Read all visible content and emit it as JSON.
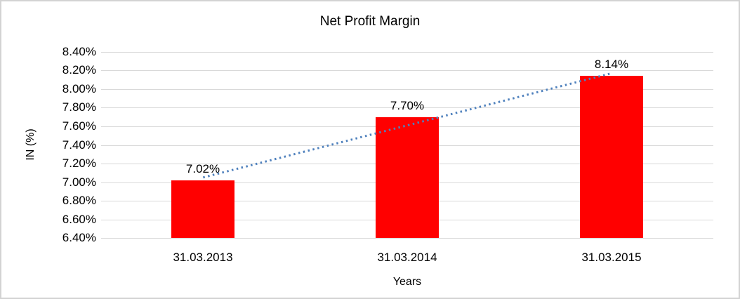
{
  "chart_data": {
    "type": "bar",
    "title": "Net Profit Margin",
    "xlabel": "Years",
    "ylabel": "IN (%)",
    "categories": [
      "31.03.2013",
      "31.03.2014",
      "31.03.2015"
    ],
    "values": [
      7.02,
      7.7,
      8.14
    ],
    "data_labels": [
      "7.02%",
      "7.70%",
      "8.14%"
    ],
    "ylim": [
      6.4,
      8.4
    ],
    "ytick_step": 0.2,
    "ytick_labels": [
      "8.40%",
      "8.20%",
      "8.00%",
      "7.80%",
      "7.60%",
      "7.40%",
      "7.20%",
      "7.00%",
      "6.80%",
      "6.60%",
      "6.40%"
    ],
    "grid": true,
    "legend": "none",
    "trendline": {
      "style": "dotted",
      "color": "#4f81bd",
      "from_category_index": 0,
      "to_category_index": 2
    },
    "colors": {
      "bar": "#ff0000",
      "gridline": "#d9d9d9",
      "frame_border": "#d3d3d3",
      "text": "#000000",
      "trendline": "#4f81bd"
    }
  }
}
